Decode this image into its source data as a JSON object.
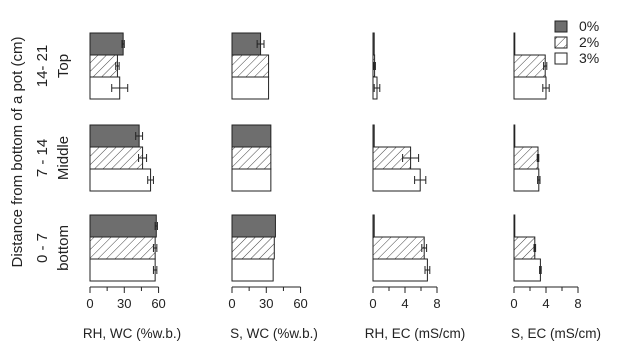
{
  "chart_data": {
    "type": "bar",
    "orientation": "horizontal",
    "y_axis_title": "Distance from bottom of a pot (cm)",
    "categories": [
      {
        "range": "14- 21",
        "label": "Top"
      },
      {
        "range": "7 - 14",
        "label": "Middle"
      },
      {
        "range": "0 - 7",
        "label": "bottom"
      }
    ],
    "legend": {
      "placement": "top-right",
      "entries": [
        {
          "label": "0%",
          "fill": "solid-gray"
        },
        {
          "label": "2%",
          "fill": "hatched"
        },
        {
          "label": "3%",
          "fill": "white"
        }
      ]
    },
    "colors": {
      "solid": "#6e6e6e",
      "outline": "#222222"
    },
    "panels": [
      {
        "xlabel": "RH, WC (%w.b.)",
        "xlim": [
          0,
          70
        ],
        "ticks": [
          "0",
          "30",
          "60"
        ],
        "tick_values": [
          0,
          30,
          60
        ],
        "minor_ticks": [
          15,
          45
        ],
        "groups": [
          {
            "values": [
              29,
              24,
              26
            ],
            "errors": [
              1,
              1.5,
              7
            ]
          },
          {
            "values": [
              43,
              46,
              53
            ],
            "errors": [
              3,
              3.5,
              2.5
            ]
          },
          {
            "values": [
              58,
              57,
              57
            ],
            "errors": [
              1,
              1.5,
              1.5
            ]
          }
        ]
      },
      {
        "xlabel": "S, WC (%w.b.)",
        "xlim": [
          0,
          70
        ],
        "ticks": [
          "0",
          "30",
          "60"
        ],
        "tick_values": [
          0,
          30,
          60
        ],
        "minor_ticks": [
          15,
          45
        ],
        "groups": [
          {
            "values": [
              25,
              32,
              32
            ],
            "errors": [
              3,
              0.5,
              0.3
            ]
          },
          {
            "values": [
              34,
              34,
              34
            ],
            "errors": [
              0.3,
              0.3,
              0.3
            ]
          },
          {
            "values": [
              38,
              37,
              36
            ],
            "errors": [
              0.5,
              0.5,
              0.5
            ]
          }
        ]
      },
      {
        "xlabel": "RH, EC (mS/cm)",
        "xlim": [
          0,
          10
        ],
        "ticks": [
          "0",
          "4",
          "8"
        ],
        "tick_values": [
          0,
          4,
          8
        ],
        "minor_ticks": [
          2,
          6
        ],
        "groups": [
          {
            "values": [
              0.15,
              0.2,
              0.5
            ],
            "errors": [
              0.05,
              0.1,
              0.35
            ]
          },
          {
            "values": [
              0.15,
              4.7,
              5.9
            ],
            "errors": [
              0.05,
              1.0,
              0.7
            ]
          },
          {
            "values": [
              0.15,
              6.4,
              6.8
            ],
            "errors": [
              0.05,
              0.3,
              0.3
            ]
          }
        ]
      },
      {
        "xlabel": "S, EC (mS/cm)",
        "xlim": [
          0,
          10
        ],
        "ticks": [
          "0",
          "4",
          "8"
        ],
        "tick_values": [
          0,
          4,
          8
        ],
        "minor_ticks": [
          2,
          6
        ],
        "groups": [
          {
            "values": [
              0.1,
              3.9,
              4.0
            ],
            "errors": [
              0.05,
              0.2,
              0.4
            ]
          },
          {
            "values": [
              0.05,
              3.0,
              3.1
            ],
            "errors": [
              0.02,
              0.1,
              0.15
            ]
          },
          {
            "values": [
              0.05,
              2.6,
              3.3
            ],
            "errors": [
              0.02,
              0.1,
              0.1
            ]
          }
        ]
      }
    ]
  }
}
